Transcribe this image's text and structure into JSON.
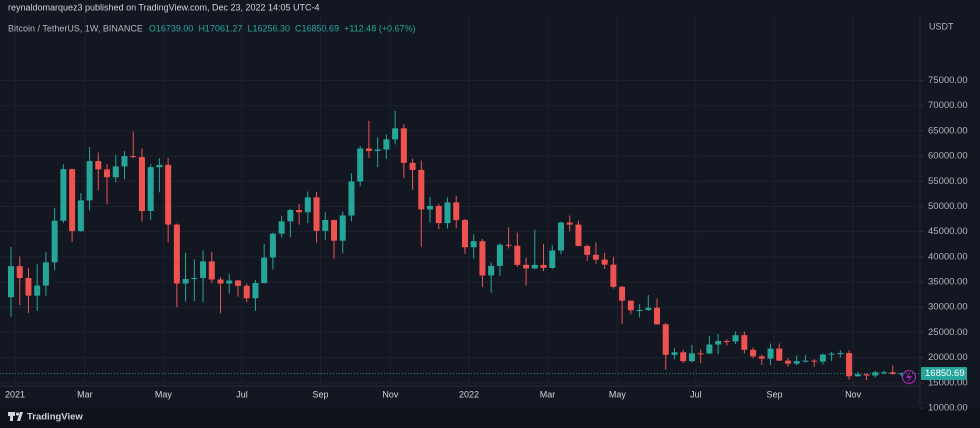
{
  "header": {
    "publisher": "reynaldomarquez3 published on TradingView.com, Dec 23, 2022 14:05 UTC-4"
  },
  "legend": {
    "symbol": "Bitcoin / TetherUS, 1W, BINANCE",
    "ohlc": [
      "O16739.00",
      "H17061.27",
      "L16256.30",
      "C16850.69",
      "+112.48 (+0.67%)"
    ]
  },
  "footer": {
    "brand": "TradingView"
  },
  "chart_data": {
    "type": "candlestick",
    "y_unit": "USDT",
    "up_color": "#26a69a",
    "down_color": "#ef5350",
    "grid": true,
    "ylim": [
      10000,
      87000
    ],
    "yticks": [
      {
        "value": 10000,
        "label": "10000.00"
      },
      {
        "value": 15000,
        "label": "15000.00"
      },
      {
        "value": 20000,
        "label": "20000.00"
      },
      {
        "value": 25000,
        "label": "25000.00"
      },
      {
        "value": 30000,
        "label": "30000.00"
      },
      {
        "value": 35000,
        "label": "35000.00"
      },
      {
        "value": 40000,
        "label": "40000.00"
      },
      {
        "value": 45000,
        "label": "45000.00"
      },
      {
        "value": 50000,
        "label": "50000.00"
      },
      {
        "value": 55000,
        "label": "55000.00"
      },
      {
        "value": 60000,
        "label": "60000.00"
      },
      {
        "value": 65000,
        "label": "65000.00"
      },
      {
        "value": 70000,
        "label": "70000.00"
      },
      {
        "value": 75000,
        "label": "75000.00"
      }
    ],
    "categories": [
      "2021",
      null,
      null,
      null,
      null,
      null,
      null,
      null,
      "Mar",
      null,
      null,
      null,
      null,
      null,
      null,
      null,
      null,
      "May",
      null,
      null,
      null,
      null,
      null,
      null,
      null,
      null,
      "Jul",
      null,
      null,
      null,
      null,
      null,
      null,
      null,
      null,
      "Sep",
      null,
      null,
      null,
      null,
      null,
      null,
      null,
      "Nov",
      null,
      null,
      null,
      null,
      null,
      null,
      null,
      null,
      "2022",
      null,
      null,
      null,
      null,
      null,
      null,
      null,
      null,
      "Mar",
      null,
      null,
      null,
      null,
      null,
      null,
      null,
      "May",
      null,
      null,
      null,
      null,
      null,
      null,
      null,
      null,
      "Jul",
      null,
      null,
      null,
      null,
      null,
      null,
      null,
      null,
      "Sep",
      null,
      null,
      null,
      null,
      null,
      null,
      null,
      null,
      "Nov",
      null,
      null,
      null,
      null,
      null,
      null
    ],
    "open": [
      32000,
      38150,
      35800,
      32300,
      34300,
      38900,
      47160,
      57400,
      45100,
      51200,
      59000,
      57350,
      55800,
      57950,
      60000,
      59800,
      49100,
      57800,
      58250,
      46400,
      34700,
      35600,
      35800,
      39100,
      35500,
      34700,
      35300,
      34250,
      31780,
      34800,
      39850,
      44600,
      47050,
      49300,
      48850,
      51800,
      45150,
      47300,
      43200,
      48200,
      54950,
      61500,
      61000,
      61300,
      63300,
      65500,
      58650,
      57250,
      49400,
      50100,
      46700,
      50800,
      47300,
      41900,
      43100,
      36300,
      38200,
      42400,
      42200,
      38400,
      37700,
      38400,
      37800,
      41250,
      46800,
      46400,
      42150,
      40400,
      39450,
      38450,
      34050,
      31300,
      29400,
      29450,
      29900,
      26600,
      20550,
      21050,
      19300,
      20850,
      20800,
      22600,
      23300,
      23200,
      24450,
      21550,
      20250,
      19800,
      21800,
      19400,
      18800,
      19300,
      19400,
      19200,
      20600,
      20800,
      20900,
      16300,
      16700,
      16450,
      17100,
      17100,
      16739
    ],
    "high": [
      41950,
      40100,
      37850,
      38500,
      40950,
      49700,
      58350,
      57500,
      52640,
      61800,
      60700,
      58400,
      60200,
      61000,
      64850,
      61500,
      58400,
      59600,
      59600,
      46600,
      40800,
      39500,
      41300,
      41000,
      36000,
      36600,
      35400,
      34700,
      35400,
      42600,
      44800,
      48150,
      49500,
      50500,
      52950,
      52900,
      48850,
      47400,
      49000,
      56600,
      62000,
      67000,
      63700,
      64300,
      69000,
      66300,
      59500,
      59100,
      51900,
      50500,
      51800,
      52100,
      47500,
      44500,
      43500,
      38900,
      42650,
      45850,
      44800,
      39800,
      45400,
      42600,
      42300,
      47000,
      48200,
      47200,
      42400,
      42900,
      40800,
      40000,
      34250,
      31350,
      30600,
      32400,
      31700,
      26900,
      21850,
      21550,
      22500,
      21600,
      24300,
      24700,
      23650,
      25200,
      25200,
      22000,
      20600,
      22800,
      22800,
      19950,
      20400,
      20500,
      19700,
      20800,
      21100,
      21500,
      21450,
      17200,
      16800,
      17400,
      17400,
      18400,
      17061.27
    ],
    "low": [
      28100,
      30420,
      28850,
      29240,
      32300,
      37350,
      46700,
      43000,
      45000,
      49200,
      53200,
      50400,
      54800,
      55400,
      59600,
      47000,
      47300,
      52800,
      42900,
      30000,
      31100,
      31200,
      31000,
      34800,
      28800,
      32700,
      32100,
      31000,
      29300,
      34700,
      37500,
      43800,
      43900,
      46400,
      46700,
      42800,
      43400,
      39600,
      40700,
      47100,
      54000,
      59600,
      57800,
      59400,
      62300,
      55600,
      53300,
      42000,
      46800,
      45500,
      45600,
      45700,
      40600,
      39650,
      34000,
      32900,
      36250,
      41650,
      38000,
      34300,
      37500,
      37150,
      37600,
      40500,
      45100,
      42100,
      39200,
      38600,
      37600,
      33700,
      26700,
      28600,
      28000,
      29250,
      26550,
      17600,
      19650,
      18950,
      19050,
      18900,
      20750,
      20700,
      22400,
      22650,
      20800,
      19850,
      18550,
      18550,
      19350,
      18200,
      18500,
      19000,
      18200,
      18650,
      19300,
      20050,
      15600,
      16200,
      15500,
      16000,
      16700,
      16550,
      16256.3
    ],
    "close": [
      38150,
      35800,
      32300,
      34300,
      38900,
      47160,
      57400,
      45100,
      51200,
      59000,
      57350,
      55800,
      57950,
      60000,
      59800,
      49100,
      57800,
      58250,
      46400,
      34700,
      35600,
      35800,
      39100,
      35500,
      34700,
      35300,
      34250,
      31780,
      34800,
      39850,
      44600,
      47050,
      49300,
      48850,
      51800,
      45150,
      47300,
      43200,
      48200,
      54950,
      61500,
      61000,
      61300,
      63300,
      65500,
      58650,
      57250,
      49400,
      50100,
      46700,
      50800,
      47300,
      41900,
      43100,
      36300,
      38200,
      42400,
      42200,
      38400,
      37700,
      38400,
      37800,
      41250,
      46800,
      46400,
      42150,
      40400,
      39450,
      38450,
      34050,
      31300,
      29400,
      29450,
      29900,
      26600,
      20550,
      21050,
      19300,
      20850,
      20800,
      22600,
      23300,
      23200,
      24450,
      21550,
      20250,
      19800,
      21800,
      19400,
      18800,
      19300,
      19400,
      19200,
      20600,
      20800,
      20900,
      16300,
      16700,
      16450,
      17100,
      17100,
      16750,
      16850.69
    ]
  }
}
